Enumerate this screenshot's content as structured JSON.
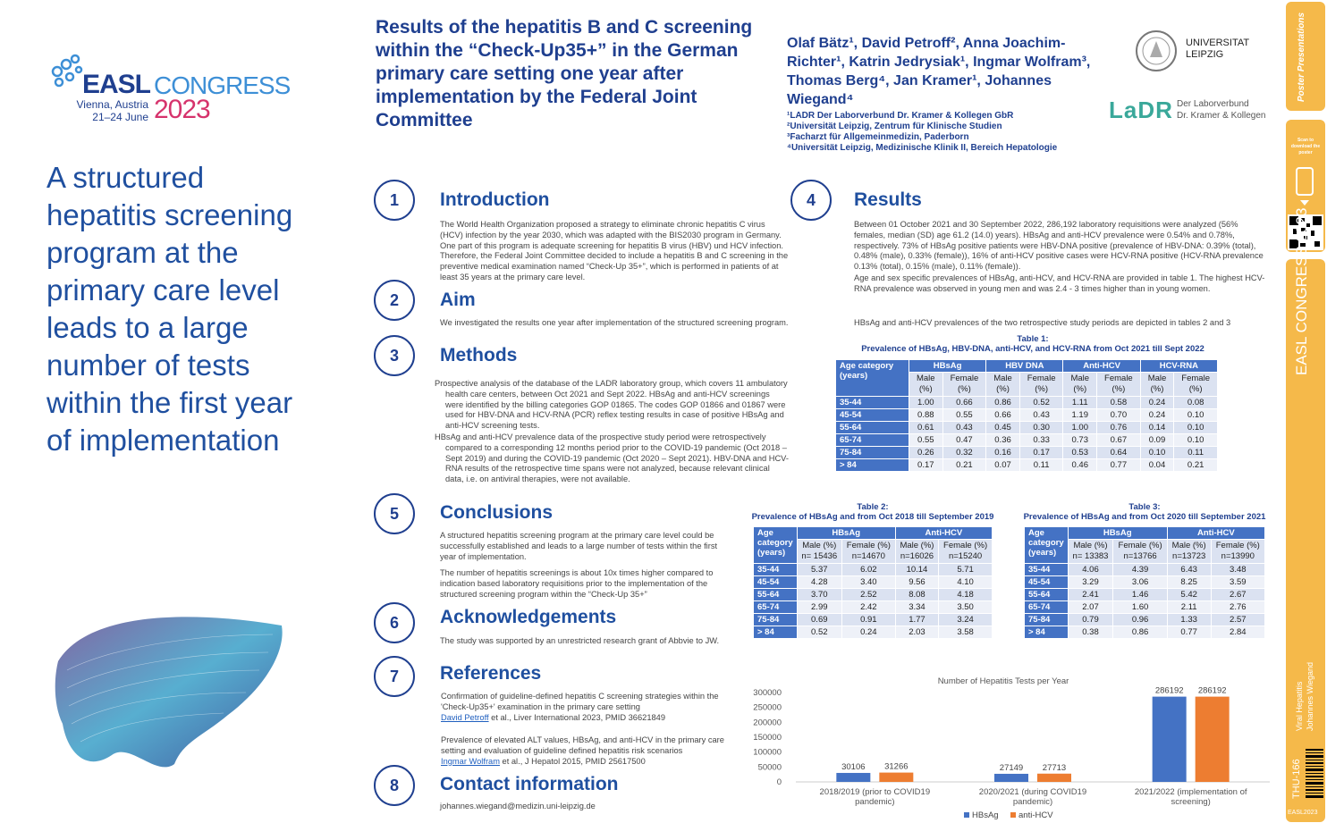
{
  "logo": {
    "brand": "EASL",
    "congress": "CONGRESS",
    "city": "Vienna, Austria",
    "dates": "21–24 June",
    "year": "2023"
  },
  "tagline": "A structured hepatitis screening program at the primary care level leads to a large number of tests within the first year of implementation",
  "title": "Results of the hepatitis B and C screening within the “Check-Up35+” in the German primary care setting one year after implementation by the Federal Joint Committee",
  "authors": "Olaf Bätz¹, David Petroff², Anna Joachim-Richter¹, Katrin Jedrysiak¹, Ingmar Wolfram³, Thomas Berg⁴, Jan Kramer¹, Johannes Wiegand⁴",
  "affiliations": [
    "¹LADR Der Laborverbund Dr. Kramer & Kollegen GbR",
    "²Universität Leipzig, Zentrum für Klinische Studien",
    "³Facharzt für Allgemeinmedizin, Paderborn",
    "⁴Universität Leipzig, Medizinische Klinik II, Bereich Hepatologie"
  ],
  "uni": {
    "line1": "UNIVERSITAT",
    "line2": "LEIPZIG"
  },
  "ladr": {
    "name": "LaDR",
    "sub1": "Der Laborverbund",
    "sub2": "Dr. Kramer & Kollegen"
  },
  "sections": {
    "intro": {
      "num": "1",
      "heading": "Introduction",
      "text": "The World Health Organization proposed a strategy to eliminate chronic hepatitis C virus (HCV) infection by the year 2030, which was adapted with the BIS2030 program in Germany. One part of this program is adequate screening for hepatitis B virus (HBV) und HCV infection. Therefore, the Federal Joint Committee decided to include a hepatitis B and C screening in the preventive medical examination named “Check-Up 35+”, which is performed in patients of at least 35 years at the primary care level."
    },
    "aim": {
      "num": "2",
      "heading": "Aim",
      "text": "We investigated the results one year after implementation of the structured screening program."
    },
    "methods": {
      "num": "3",
      "heading": "Methods",
      "p1": "Prospective analysis of the database of the LADR laboratory group, which covers 11 ambulatory health care centers, between Oct 2021 and Sept 2022. HBsAg and anti-HCV screenings were identified by the billing categories GOP 01865. The codes GOP 01866 and 01867 were used for HBV-DNA and HCV-RNA (PCR) reflex testing results in case of positive HBsAg and anti-HCV screening tests.",
      "p2": "HBsAg and anti-HCV prevalence data of the prospective study period were retrospectively compared to a corresponding 12 months period prior to the COVID-19 pandemic (Oct 2018 – Sept 2019) and during the COVID-19 pandemic (Oct 2020 – Sept 2021). HBV-DNA and HCV-RNA results of the retrospective time spans were not analyzed, because relevant clinical data, i.e. on antiviral therapies, were not available."
    },
    "conclusions": {
      "num": "5",
      "heading": "Conclusions",
      "p1": "A structured hepatitis screening program at the primary care level could be successfully established and leads to a large number of tests within the first year of implementation.",
      "p2": "The number of hepatitis screenings is about 10x times higher compared to indication based laboratory requisitions prior to the implementation of the structured screening program within the “Check-Up 35+”"
    },
    "ack": {
      "num": "6",
      "heading": "Acknowledgements",
      "text": "The study was supported by an unrestricted research grant of Abbvie to JW."
    },
    "refs": {
      "num": "7",
      "heading": "References",
      "r1": "Confirmation of guideline-defined hepatitis C screening strategies within the 'Check-Up35+' examination in the primary care setting",
      "r1a": "David Petroff",
      "r1b": " et al., Liver International 2023, PMID 36621849",
      "r2": "Prevalence of elevated ALT values, HBsAg, and anti-HCV in the primary care setting and evaluation of guideline defined hepatitis risk scenarios",
      "r2a": "Ingmar Wolfram",
      "r2b": " et al., J Hepatol 2015, PMID 25617500"
    },
    "contact": {
      "num": "8",
      "heading": "Contact information",
      "email": "johannes.wiegand@medizin.uni-leipzig.de"
    },
    "results": {
      "num": "4",
      "heading": "Results",
      "p1": "Between 01 October 2021 and 30 September 2022, 286,192 laboratory requisitions were analyzed (56% females, median (SD) age 61.2 (14.0) years). HBsAg and anti-HCV prevalence were 0.54% and 0.78%, respectively. 73% of HBsAg positive patients were HBV-DNA positive (prevalence of HBV-DNA: 0.39% (total), 0.48% (male), 0.33% (female)), 16% of anti-HCV positive cases were HCV-RNA positive (HCV-RNA prevalence 0.13% (total), 0.15% (male), 0.11% (female)).",
      "p2": "Age and sex specific prevalences of HBsAg, anti-HCV, and HCV-RNA are provided in table 1. The highest HCV-RNA prevalence was observed in young men and was 2.4 - 3 times higher than in young women.",
      "p3": "HBsAg and anti-HCV prevalences of the two retrospective study periods are depicted in tables 2 and 3"
    }
  },
  "table1": {
    "cap1": "Table 1:",
    "cap2": "Prevalence of HBsAg, HBV-DNA, anti-HCV, and HCV-RNA from Oct 2021 till Sept 2022",
    "h0": "Age category (years)",
    "groups": [
      "HBsAg",
      "HBV DNA",
      "Anti-HCV",
      "HCV-RNA"
    ],
    "sub": [
      "Male (%)",
      "Female (%)",
      "Male (%)",
      "Female (%)",
      "Male (%)",
      "Female (%)",
      "Male (%)",
      "Female (%)"
    ],
    "rows": [
      [
        "35-44",
        "1.00",
        "0.66",
        "0.86",
        "0.52",
        "1.11",
        "0.58",
        "0.24",
        "0.08"
      ],
      [
        "45-54",
        "0.88",
        "0.55",
        "0.66",
        "0.43",
        "1.19",
        "0.70",
        "0.24",
        "0.10"
      ],
      [
        "55-64",
        "0.61",
        "0.43",
        "0.45",
        "0.30",
        "1.00",
        "0.76",
        "0.14",
        "0.10"
      ],
      [
        "65-74",
        "0.55",
        "0.47",
        "0.36",
        "0.33",
        "0.73",
        "0.67",
        "0.09",
        "0.10"
      ],
      [
        "75-84",
        "0.26",
        "0.32",
        "0.16",
        "0.17",
        "0.53",
        "0.64",
        "0.10",
        "0.11"
      ],
      [
        "> 84",
        "0.17",
        "0.21",
        "0.07",
        "0.11",
        "0.46",
        "0.77",
        "0.04",
        "0.21"
      ]
    ]
  },
  "table2": {
    "cap1": "Table 2:",
    "cap2": "Prevalence of HBsAg and from Oct 2018 till September 2019",
    "h0": "Age category (years)",
    "groups": [
      "HBsAg",
      "Anti-HCV"
    ],
    "sub": [
      "Male (%)",
      "n= 15436",
      "Female (%)",
      "n=14670",
      "Male (%)",
      "n=16026",
      "Female (%)",
      "n=15240"
    ],
    "rows": [
      [
        "35-44",
        "5.37",
        "6.02",
        "10.14",
        "5.71"
      ],
      [
        "45-54",
        "4.28",
        "3.40",
        "9.56",
        "4.10"
      ],
      [
        "55-64",
        "3.70",
        "2.52",
        "8.08",
        "4.18"
      ],
      [
        "65-74",
        "2.99",
        "2.42",
        "3.34",
        "3.50"
      ],
      [
        "75-84",
        "0.69",
        "0.91",
        "1.77",
        "3.24"
      ],
      [
        "> 84",
        "0.52",
        "0.24",
        "2.03",
        "3.58"
      ]
    ]
  },
  "table3": {
    "cap1": "Table 3:",
    "cap2": "Prevalence of HBsAg and from Oct 2020 till September 2021",
    "h0": "Age category (years)",
    "groups": [
      "HBsAg",
      "Anti-HCV"
    ],
    "sub": [
      "Male (%)",
      "n= 13383",
      "Female (%)",
      "n=13766",
      "Male (%)",
      "n=13723",
      "Female (%)",
      "n=13990"
    ],
    "rows": [
      [
        "35-44",
        "4.06",
        "4.39",
        "6.43",
        "3.48"
      ],
      [
        "45-54",
        "3.29",
        "3.06",
        "8.25",
        "3.59"
      ],
      [
        "55-64",
        "2.41",
        "1.46",
        "5.42",
        "2.67"
      ],
      [
        "65-74",
        "2.07",
        "1.60",
        "2.11",
        "2.76"
      ],
      [
        "75-84",
        "0.79",
        "0.96",
        "1.33",
        "2.57"
      ],
      [
        "> 84",
        "0.38",
        "0.86",
        "0.77",
        "2.84"
      ]
    ]
  },
  "chart_data": {
    "type": "bar",
    "title": "Number of Hepatitis Tests per Year",
    "categories": [
      "2018/2019 (prior to COVID19 pandemic)",
      "2020/2021 (during COVID19 pandemic)",
      "2021/2022 (implementation of screening)"
    ],
    "series": [
      {
        "name": "HBsAg",
        "values": [
          30106,
          27149,
          286192
        ],
        "color": "#4472c4"
      },
      {
        "name": "anti-HCV",
        "values": [
          31266,
          27713,
          286192
        ],
        "color": "#ed7d31"
      }
    ],
    "ylim": [
      0,
      300000
    ],
    "yticks": [
      "300000",
      "250000",
      "200000",
      "150000",
      "100000",
      "50000",
      "0"
    ],
    "legend": "bottom"
  },
  "sidebar": {
    "poster": "Poster Presentations",
    "scan": "Scan to download the poster",
    "easl": "EASL CONGRESS 2023",
    "topic": "Viral Hepatitis",
    "author": "Johannes Wiegand",
    "code": "THU-166",
    "tag": "EASL2023"
  }
}
